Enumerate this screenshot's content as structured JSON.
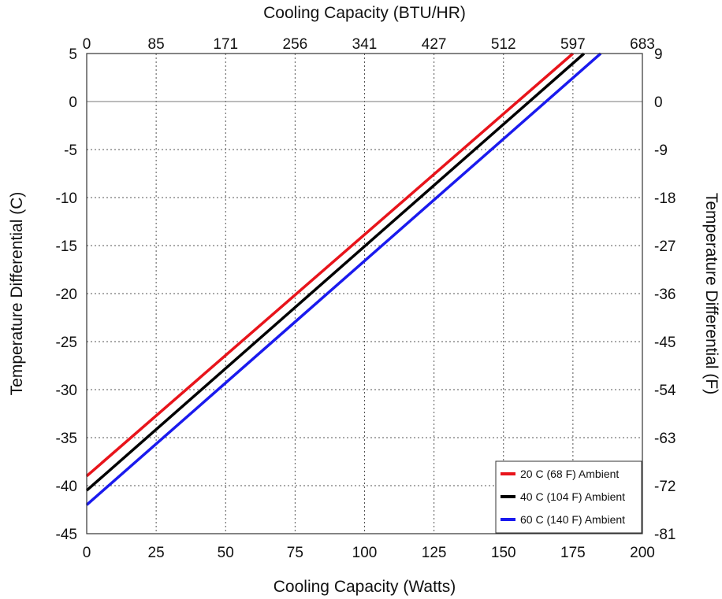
{
  "chart_data": {
    "type": "line",
    "title": "",
    "xlabel": "Cooling Capacity (Watts)",
    "x2label": "Cooling Capacity (BTU/HR)",
    "ylabel": "Temperature Differential (C)",
    "y2label": "Temperature Differential (F)",
    "xlim": [
      0,
      200
    ],
    "ylim": [
      -45,
      5
    ],
    "grid": true,
    "legend_position": "bottom-right",
    "x_ticks": [
      "0",
      "25",
      "50",
      "75",
      "100",
      "125",
      "150",
      "175",
      "200"
    ],
    "x2_ticks": [
      "0",
      "85",
      "171",
      "256",
      "341",
      "427",
      "512",
      "597",
      "683"
    ],
    "y_ticks": [
      "5",
      "0",
      "-5",
      "-10",
      "-15",
      "-20",
      "-25",
      "-30",
      "-35",
      "-40",
      "-45"
    ],
    "y2_ticks": [
      "9",
      "0",
      "-9",
      "-18",
      "-27",
      "-36",
      "-45",
      "-54",
      "-63",
      "-72",
      "-81"
    ],
    "series": [
      {
        "name": "20 C (68 F) Ambient",
        "color": "#e8141b",
        "x": [
          0,
          175
        ],
        "y": [
          -39,
          5
        ]
      },
      {
        "name": "40 C (104 F) Ambient",
        "color": "#000000",
        "x": [
          0,
          179
        ],
        "y": [
          -40.5,
          5
        ]
      },
      {
        "name": "60 C (140 F) Ambient",
        "color": "#1a1aee",
        "x": [
          0,
          185
        ],
        "y": [
          -42,
          5
        ]
      }
    ]
  }
}
